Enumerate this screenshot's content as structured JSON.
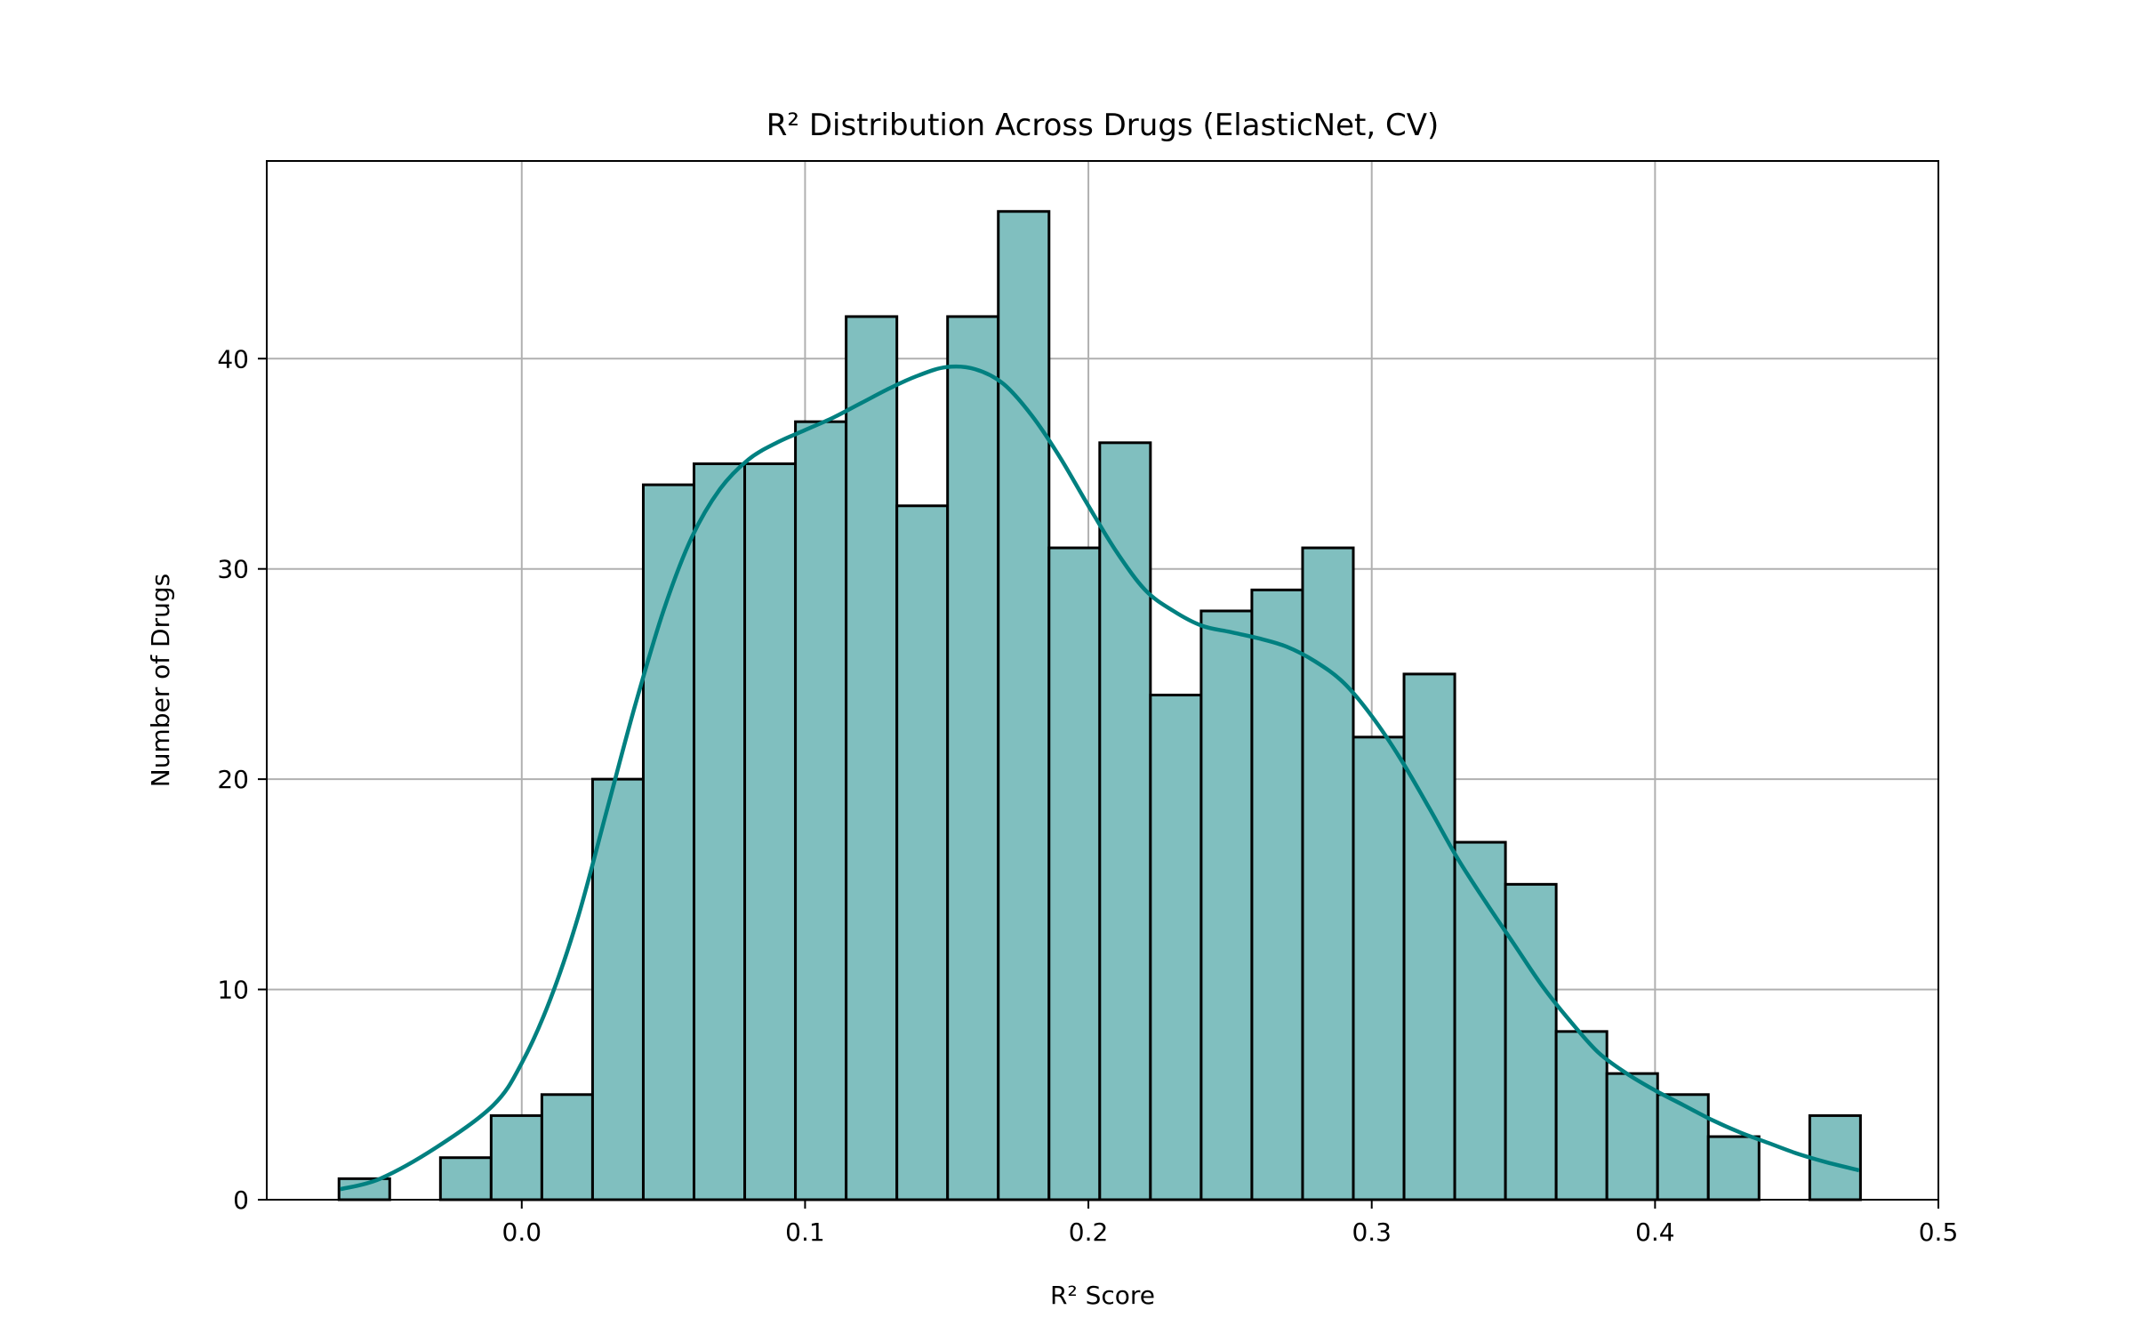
{
  "chart_data": {
    "type": "bar",
    "title": "R² Distribution Across Drugs (ElasticNet, CV)",
    "xlabel": "R² Score",
    "ylabel": "Number of Drugs",
    "xlim": [
      -0.09,
      0.5
    ],
    "ylim": [
      0,
      49.4
    ],
    "x_ticks": [
      "0.0",
      "0.1",
      "0.2",
      "0.3",
      "0.4",
      "0.5"
    ],
    "y_ticks": [
      "0",
      "10",
      "20",
      "30",
      "40"
    ],
    "grid": true,
    "bin_edges": [
      -0.0645,
      -0.0466,
      -0.0287,
      -0.0108,
      0.0071,
      0.025,
      0.0429,
      0.0608,
      0.0787,
      0.0966,
      0.1145,
      0.1324,
      0.1503,
      0.1682,
      0.1861,
      0.204,
      0.2219,
      0.2398,
      0.2577,
      0.2756,
      0.2935,
      0.3114,
      0.3293,
      0.3472,
      0.3651,
      0.383,
      0.4009,
      0.4188,
      0.4367,
      0.4546,
      0.4725
    ],
    "counts": [
      1,
      0,
      2,
      4,
      5,
      20,
      34,
      35,
      35,
      37,
      42,
      33,
      42,
      47,
      31,
      36,
      24,
      28,
      29,
      31,
      22,
      25,
      17,
      15,
      8,
      6,
      5,
      3,
      0,
      4
    ],
    "kde": {
      "x": [
        -0.064,
        -0.05,
        -0.03,
        -0.01,
        0.0,
        0.01,
        0.02,
        0.03,
        0.04,
        0.05,
        0.06,
        0.07,
        0.08,
        0.09,
        0.1,
        0.11,
        0.12,
        0.13,
        0.14,
        0.15,
        0.16,
        0.17,
        0.18,
        0.19,
        0.2,
        0.21,
        0.22,
        0.23,
        0.24,
        0.25,
        0.26,
        0.27,
        0.28,
        0.29,
        0.3,
        0.31,
        0.32,
        0.33,
        0.34,
        0.35,
        0.36,
        0.37,
        0.38,
        0.39,
        0.4,
        0.41,
        0.42,
        0.43,
        0.44,
        0.45,
        0.46,
        0.472
      ],
      "y": [
        0.5,
        1.0,
        2.5,
        4.5,
        6.5,
        9.5,
        13.5,
        18.5,
        23.5,
        28.0,
        31.5,
        33.8,
        35.2,
        36.0,
        36.6,
        37.2,
        37.9,
        38.6,
        39.2,
        39.6,
        39.5,
        38.8,
        37.3,
        35.3,
        33.0,
        30.8,
        29.0,
        28.0,
        27.3,
        27.0,
        26.7,
        26.3,
        25.6,
        24.6,
        23.0,
        21.0,
        18.7,
        16.3,
        14.2,
        12.2,
        10.2,
        8.5,
        7.0,
        6.0,
        5.2,
        4.5,
        3.8,
        3.2,
        2.7,
        2.2,
        1.8,
        1.4
      ]
    },
    "colors": {
      "bar_fill": "#80bfbf",
      "bar_edge": "#000000",
      "kde_line": "#008080",
      "grid": "#b0b0b0"
    }
  }
}
